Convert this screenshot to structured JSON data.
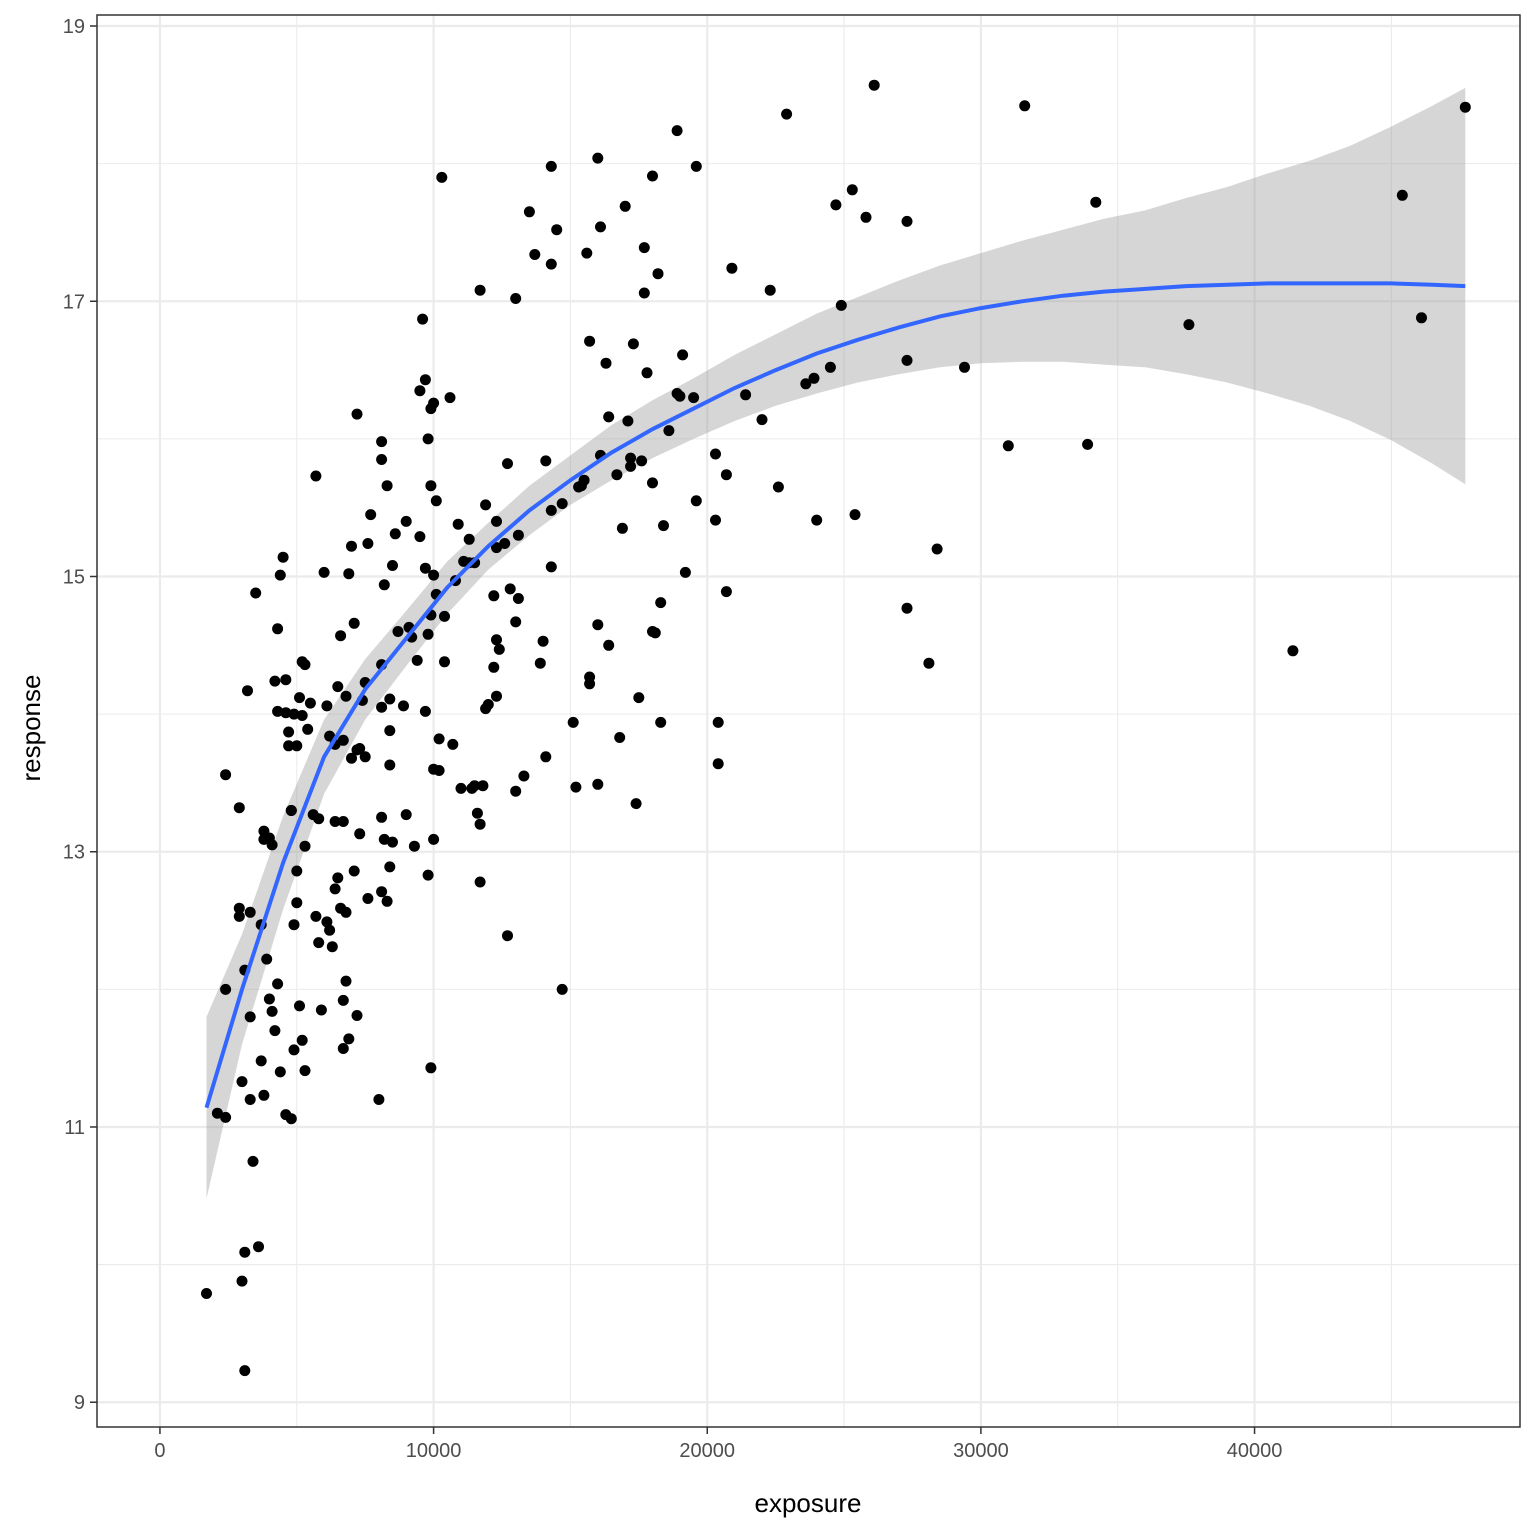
{
  "chart_data": {
    "type": "scatter",
    "title": "",
    "xlabel": "exposure",
    "ylabel": "response",
    "xlim": [
      -2300,
      49700
    ],
    "ylim": [
      8.82,
      19.08
    ],
    "x_ticks": [
      0,
      10000,
      20000,
      30000,
      40000
    ],
    "x_tick_labels": [
      "0",
      "10000",
      "20000",
      "30000",
      "40000"
    ],
    "y_ticks": [
      9,
      11,
      13,
      15,
      17,
      19
    ],
    "y_tick_labels": [
      "9",
      "11",
      "13",
      "15",
      "17",
      "19"
    ],
    "grid": true,
    "legend": "none",
    "colors": {
      "points": "#000000",
      "smooth_line": "#3366ff",
      "ribbon": "#999999",
      "grid": "#ebebeb",
      "border": "#333333"
    },
    "points": [
      [
        1700,
        9.79
      ],
      [
        2100,
        11.1
      ],
      [
        2400,
        11.07
      ],
      [
        2400,
        13.56
      ],
      [
        2400,
        12
      ],
      [
        2900,
        12.53
      ],
      [
        2900,
        12.59
      ],
      [
        2900,
        13.32
      ],
      [
        3000,
        11.33
      ],
      [
        3000,
        9.88
      ],
      [
        3100,
        12.14
      ],
      [
        3100,
        10.09
      ],
      [
        3100,
        9.23
      ],
      [
        3200,
        14.17
      ],
      [
        3300,
        12.56
      ],
      [
        3300,
        11.8
      ],
      [
        3300,
        11.2
      ],
      [
        3400,
        10.75
      ],
      [
        3500,
        14.88
      ],
      [
        3600,
        10.13
      ],
      [
        3700,
        12.47
      ],
      [
        3700,
        11.48
      ],
      [
        3800,
        13.15
      ],
      [
        3800,
        13.09
      ],
      [
        3800,
        11.23
      ],
      [
        3900,
        12.22
      ],
      [
        4000,
        13.1
      ],
      [
        4000,
        11.93
      ],
      [
        4100,
        13.05
      ],
      [
        4100,
        11.84
      ],
      [
        4200,
        14.24
      ],
      [
        4200,
        11.7
      ],
      [
        4300,
        14.62
      ],
      [
        4300,
        12.04
      ],
      [
        4300,
        14.02
      ],
      [
        4400,
        15.01
      ],
      [
        4400,
        11.4
      ],
      [
        4500,
        15.14
      ],
      [
        4600,
        14.25
      ],
      [
        4600,
        14.01
      ],
      [
        4600,
        11.09
      ],
      [
        4700,
        13.77
      ],
      [
        4700,
        13.87
      ],
      [
        4800,
        13.3
      ],
      [
        4800,
        13.3
      ],
      [
        4800,
        11.06
      ],
      [
        4900,
        12.47
      ],
      [
        4900,
        11.56
      ],
      [
        4900,
        14.0
      ],
      [
        5000,
        13.77
      ],
      [
        5000,
        12.86
      ],
      [
        5000,
        12.63
      ],
      [
        5100,
        11.88
      ],
      [
        5100,
        14.12
      ],
      [
        5200,
        14.38
      ],
      [
        5200,
        11.63
      ],
      [
        5200,
        13.99
      ],
      [
        5300,
        14.36
      ],
      [
        5300,
        13.04
      ],
      [
        5300,
        11.41
      ],
      [
        5400,
        13.89
      ],
      [
        5500,
        14.08
      ],
      [
        5600,
        13.27
      ],
      [
        5700,
        15.73
      ],
      [
        5700,
        12.53
      ],
      [
        5800,
        13.24
      ],
      [
        5800,
        12.34
      ],
      [
        5900,
        11.85
      ],
      [
        6000,
        15.03
      ],
      [
        6100,
        12.49
      ],
      [
        6100,
        14.06
      ],
      [
        6200,
        12.43
      ],
      [
        6200,
        13.84
      ],
      [
        6300,
        12.31
      ],
      [
        6400,
        13.78
      ],
      [
        6400,
        13.22
      ],
      [
        6400,
        12.73
      ],
      [
        6500,
        14.2
      ],
      [
        6500,
        12.81
      ],
      [
        6600,
        14.57
      ],
      [
        6600,
        12.59
      ],
      [
        6700,
        13.81
      ],
      [
        6700,
        11.92
      ],
      [
        6700,
        13.22
      ],
      [
        6700,
        11.57
      ],
      [
        6800,
        14.13
      ],
      [
        6800,
        12.06
      ],
      [
        6800,
        12.56
      ],
      [
        6900,
        11.64
      ],
      [
        6900,
        15.02
      ],
      [
        7000,
        15.22
      ],
      [
        7000,
        13.68
      ],
      [
        7100,
        14.66
      ],
      [
        7100,
        12.86
      ],
      [
        7200,
        16.18
      ],
      [
        7200,
        13.74
      ],
      [
        7200,
        11.81
      ],
      [
        7300,
        13.75
      ],
      [
        7300,
        13.13
      ],
      [
        7400,
        14.1
      ],
      [
        7500,
        14.23
      ],
      [
        7500,
        13.69
      ],
      [
        7600,
        15.24
      ],
      [
        7600,
        12.66
      ],
      [
        7700,
        15.45
      ],
      [
        8000,
        11.2
      ],
      [
        8100,
        15.98
      ],
      [
        8100,
        15.85
      ],
      [
        8100,
        14.36
      ],
      [
        8100,
        14.05
      ],
      [
        8100,
        13.25
      ],
      [
        8100,
        12.71
      ],
      [
        8200,
        14.94
      ],
      [
        8200,
        13.09
      ],
      [
        8300,
        15.66
      ],
      [
        8300,
        12.64
      ],
      [
        8400,
        14.11
      ],
      [
        8400,
        13.88
      ],
      [
        8400,
        13.63
      ],
      [
        8400,
        12.89
      ],
      [
        8500,
        15.08
      ],
      [
        8500,
        13.07
      ],
      [
        8600,
        15.31
      ],
      [
        8700,
        14.6
      ],
      [
        8900,
        14.06
      ],
      [
        9000,
        15.4
      ],
      [
        9000,
        13.27
      ],
      [
        9100,
        14.63
      ],
      [
        9200,
        14.56
      ],
      [
        9300,
        13.04
      ],
      [
        9400,
        14.39
      ],
      [
        9500,
        16.35
      ],
      [
        9500,
        15.29
      ],
      [
        9600,
        16.87
      ],
      [
        9700,
        16.43
      ],
      [
        9700,
        15.06
      ],
      [
        9700,
        14.02
      ],
      [
        9800,
        16.0
      ],
      [
        9800,
        14.58
      ],
      [
        9800,
        12.83
      ],
      [
        9900,
        16.22
      ],
      [
        9900,
        15.66
      ],
      [
        9900,
        14.72
      ],
      [
        9900,
        11.43
      ],
      [
        10000,
        16.26
      ],
      [
        10000,
        15.01
      ],
      [
        10000,
        13.09
      ],
      [
        10000,
        13.6
      ],
      [
        10100,
        15.55
      ],
      [
        10100,
        14.87
      ],
      [
        10200,
        13.82
      ],
      [
        10200,
        13.59
      ],
      [
        10300,
        17.9
      ],
      [
        10400,
        14.71
      ],
      [
        10400,
        14.38
      ],
      [
        10600,
        16.3
      ],
      [
        10700,
        13.78
      ],
      [
        10800,
        14.97
      ],
      [
        10900,
        15.38
      ],
      [
        11000,
        13.46
      ],
      [
        11100,
        15.11
      ],
      [
        11300,
        15.27
      ],
      [
        11300,
        15.1
      ],
      [
        11400,
        13.46
      ],
      [
        11500,
        15.1
      ],
      [
        11500,
        13.48
      ],
      [
        11600,
        13.28
      ],
      [
        11700,
        13.2
      ],
      [
        11700,
        12.78
      ],
      [
        11700,
        17.08
      ],
      [
        11800,
        13.48
      ],
      [
        11900,
        15.52
      ],
      [
        11900,
        14.04
      ],
      [
        12000,
        14.07
      ],
      [
        12200,
        14.34
      ],
      [
        12200,
        14.86
      ],
      [
        12300,
        15.4
      ],
      [
        12300,
        15.21
      ],
      [
        12300,
        14.54
      ],
      [
        12300,
        14.13
      ],
      [
        12400,
        14.47
      ],
      [
        12600,
        15.24
      ],
      [
        12700,
        15.82
      ],
      [
        12700,
        12.39
      ],
      [
        12800,
        14.91
      ],
      [
        13000,
        14.67
      ],
      [
        13000,
        17.02
      ],
      [
        13000,
        13.44
      ],
      [
        13100,
        14.84
      ],
      [
        13100,
        15.3
      ],
      [
        13300,
        13.55
      ],
      [
        13500,
        17.65
      ],
      [
        13700,
        17.34
      ],
      [
        13900,
        14.37
      ],
      [
        14000,
        14.53
      ],
      [
        14100,
        15.84
      ],
      [
        14100,
        13.69
      ],
      [
        14300,
        15.48
      ],
      [
        14300,
        15.07
      ],
      [
        14300,
        17.98
      ],
      [
        14300,
        17.27
      ],
      [
        14500,
        17.52
      ],
      [
        14700,
        15.53
      ],
      [
        14700,
        12.0
      ],
      [
        15100,
        13.94
      ],
      [
        15200,
        13.47
      ],
      [
        15300,
        15.65
      ],
      [
        15400,
        15.66
      ],
      [
        15500,
        15.7
      ],
      [
        15600,
        17.35
      ],
      [
        15700,
        16.71
      ],
      [
        15700,
        14.27
      ],
      [
        15700,
        14.22
      ],
      [
        16000,
        18.04
      ],
      [
        16000,
        14.65
      ],
      [
        16000,
        13.49
      ],
      [
        16100,
        17.54
      ],
      [
        16100,
        15.88
      ],
      [
        16300,
        16.55
      ],
      [
        16400,
        16.16
      ],
      [
        16400,
        14.5
      ],
      [
        16700,
        15.74
      ],
      [
        16800,
        13.83
      ],
      [
        16900,
        15.35
      ],
      [
        17000,
        17.69
      ],
      [
        17100,
        16.13
      ],
      [
        17200,
        15.8
      ],
      [
        17200,
        15.86
      ],
      [
        17300,
        16.69
      ],
      [
        17400,
        13.35
      ],
      [
        17500,
        14.12
      ],
      [
        17600,
        15.84
      ],
      [
        17700,
        17.39
      ],
      [
        17700,
        17.06
      ],
      [
        17800,
        16.48
      ],
      [
        18000,
        17.91
      ],
      [
        18000,
        15.68
      ],
      [
        18000,
        14.6
      ],
      [
        18100,
        14.59
      ],
      [
        18200,
        17.2
      ],
      [
        18300,
        14.81
      ],
      [
        18300,
        13.94
      ],
      [
        18400,
        15.37
      ],
      [
        18600,
        16.06
      ],
      [
        18900,
        18.24
      ],
      [
        18900,
        16.33
      ],
      [
        19000,
        16.31
      ],
      [
        19100,
        16.61
      ],
      [
        19200,
        15.03
      ],
      [
        19500,
        16.3
      ],
      [
        19600,
        17.98
      ],
      [
        19600,
        15.55
      ],
      [
        20300,
        15.89
      ],
      [
        20300,
        15.41
      ],
      [
        20400,
        13.94
      ],
      [
        20400,
        13.64
      ],
      [
        20700,
        15.74
      ],
      [
        20700,
        14.89
      ],
      [
        20900,
        17.24
      ],
      [
        21400,
        16.32
      ],
      [
        22000,
        16.14
      ],
      [
        22300,
        17.08
      ],
      [
        22600,
        15.65
      ],
      [
        22900,
        18.36
      ],
      [
        23600,
        16.4
      ],
      [
        23900,
        16.44
      ],
      [
        24000,
        15.41
      ],
      [
        24500,
        16.52
      ],
      [
        24700,
        17.7
      ],
      [
        24900,
        16.97
      ],
      [
        25300,
        17.81
      ],
      [
        25400,
        15.45
      ],
      [
        25800,
        17.61
      ],
      [
        26100,
        18.57
      ],
      [
        27300,
        17.58
      ],
      [
        27300,
        16.57
      ],
      [
        27300,
        14.77
      ],
      [
        28100,
        14.37
      ],
      [
        28400,
        15.2
      ],
      [
        29400,
        16.52
      ],
      [
        31000,
        15.95
      ],
      [
        31600,
        18.42
      ],
      [
        33900,
        15.96
      ],
      [
        34200,
        17.72
      ],
      [
        37600,
        16.83
      ],
      [
        41400,
        14.46
      ],
      [
        45400,
        17.77
      ],
      [
        46100,
        16.88
      ],
      [
        47700,
        18.41
      ]
    ],
    "smooth": {
      "x": [
        1700,
        3000,
        4500,
        6000,
        7500,
        9000,
        10500,
        12000,
        13500,
        15000,
        16500,
        18000,
        19500,
        21000,
        22500,
        24000,
        25500,
        27000,
        28500,
        30000,
        31500,
        33000,
        34500,
        36000,
        37500,
        39000,
        40500,
        42000,
        43500,
        45000,
        46500,
        47700
      ],
      "y": [
        11.14,
        12.0,
        12.92,
        13.69,
        14.18,
        14.55,
        14.92,
        15.22,
        15.48,
        15.7,
        15.9,
        16.07,
        16.22,
        16.37,
        16.5,
        16.62,
        16.72,
        16.81,
        16.89,
        16.95,
        17.0,
        17.04,
        17.07,
        17.09,
        17.11,
        17.12,
        17.13,
        17.13,
        17.13,
        17.13,
        17.12,
        17.11
      ],
      "lower": [
        10.48,
        11.6,
        12.58,
        13.42,
        13.96,
        14.35,
        14.73,
        15.05,
        15.3,
        15.52,
        15.7,
        15.86,
        16.0,
        16.13,
        16.24,
        16.33,
        16.41,
        16.47,
        16.52,
        16.55,
        16.56,
        16.56,
        16.54,
        16.52,
        16.47,
        16.41,
        16.33,
        16.24,
        16.13,
        15.99,
        15.82,
        15.67
      ],
      "upper": [
        11.8,
        12.4,
        13.26,
        13.96,
        14.4,
        14.75,
        15.11,
        15.39,
        15.66,
        15.88,
        16.1,
        16.28,
        16.44,
        16.61,
        16.76,
        16.91,
        17.03,
        17.15,
        17.26,
        17.35,
        17.44,
        17.52,
        17.6,
        17.66,
        17.75,
        17.83,
        17.93,
        18.02,
        18.13,
        18.27,
        18.42,
        18.55
      ]
    }
  }
}
